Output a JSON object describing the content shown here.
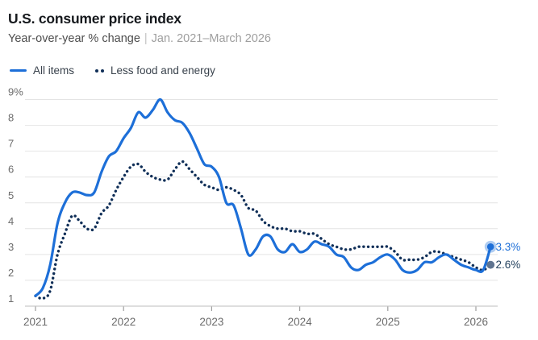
{
  "header": {
    "title": "U.S. consumer price index",
    "subtitle_main": "Year-over-year % change",
    "subtitle_sep": "|",
    "subtitle_range": "Jan. 2021–March 2026"
  },
  "legend": [
    {
      "label": "All items",
      "swatch": "solid-line"
    },
    {
      "label": "Less food and energy",
      "swatch": "dots"
    }
  ],
  "colors": {
    "all_items_line": "#1d6fd8",
    "core_line": "#102f58",
    "all_items_marker": "#1d6fd8",
    "all_items_marker_halo": "#1d6fd8",
    "core_marker": "#5f7490",
    "all_items_end_label": "#1d6fd8",
    "core_end_label": "#24425f",
    "grid": "#e4e4e4",
    "axis": "#c9c9c9",
    "tick": "#9e9e9e",
    "axis_text": "#6b6b6b"
  },
  "chart_data": {
    "type": "line",
    "title": "U.S. consumer price index",
    "ylabel": "Year-over-year % change",
    "x_start": "2021-01",
    "x_end": "2026-03",
    "months_per_point": 1,
    "ylim": [
      1,
      9
    ],
    "grid": "horizontal",
    "x_tick_labels": [
      "2021",
      "2022",
      "2023",
      "2024",
      "2025",
      "2026"
    ],
    "y_tick_labels": [
      "1",
      "2",
      "3",
      "4",
      "5",
      "6",
      "7",
      "8",
      "9%"
    ],
    "series": [
      {
        "name": "All items",
        "style": "solid",
        "end_label": "3.3%",
        "values": [
          1.4,
          1.7,
          2.6,
          4.2,
          5.0,
          5.4,
          5.4,
          5.3,
          5.4,
          6.2,
          6.8,
          7.0,
          7.5,
          7.9,
          8.5,
          8.3,
          8.6,
          9.0,
          8.5,
          8.2,
          8.1,
          7.7,
          7.1,
          6.5,
          6.4,
          6.0,
          5.0,
          4.9,
          4.0,
          3.0,
          3.2,
          3.7,
          3.7,
          3.2,
          3.1,
          3.4,
          3.1,
          3.2,
          3.5,
          3.4,
          3.3,
          3.0,
          2.9,
          2.5,
          2.4,
          2.6,
          2.7,
          2.9,
          3.0,
          2.8,
          2.4,
          2.3,
          2.4,
          2.7,
          2.7,
          2.9,
          3.0,
          2.8,
          2.6,
          2.5,
          2.4,
          2.4,
          3.3
        ]
      },
      {
        "name": "Less food and energy",
        "style": "dotted",
        "end_label": "2.6%",
        "values": [
          1.4,
          1.3,
          1.6,
          3.0,
          3.8,
          4.5,
          4.3,
          4.0,
          4.0,
          4.6,
          4.9,
          5.5,
          6.0,
          6.4,
          6.5,
          6.2,
          6.0,
          5.9,
          5.9,
          6.3,
          6.6,
          6.3,
          6.0,
          5.7,
          5.6,
          5.5,
          5.6,
          5.5,
          5.3,
          4.8,
          4.7,
          4.3,
          4.1,
          4.0,
          4.0,
          3.9,
          3.9,
          3.8,
          3.8,
          3.6,
          3.4,
          3.3,
          3.2,
          3.2,
          3.3,
          3.3,
          3.3,
          3.3,
          3.3,
          3.1,
          2.8,
          2.8,
          2.8,
          2.9,
          3.1,
          3.1,
          3.0,
          2.9,
          2.8,
          2.7,
          2.5,
          2.4,
          2.6
        ]
      }
    ]
  }
}
